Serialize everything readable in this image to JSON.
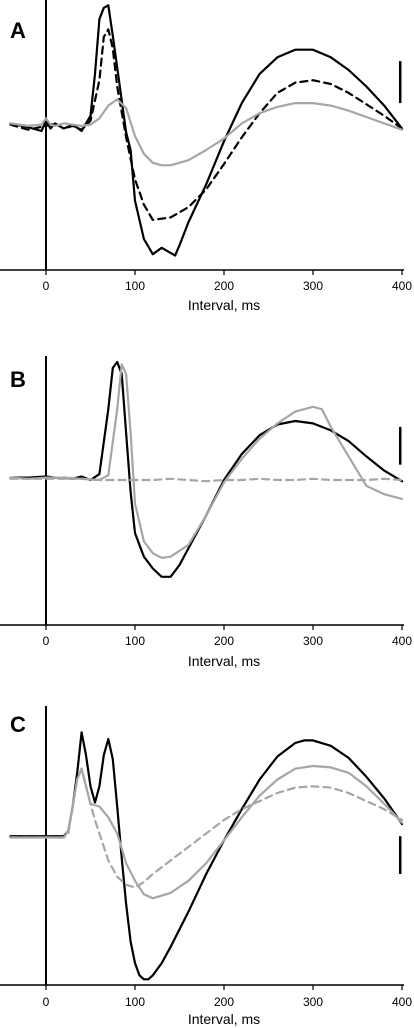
{
  "figure": {
    "panels": [
      "A",
      "B",
      "C"
    ],
    "colors": {
      "black": "#000000",
      "gray": "#a6a6a6"
    }
  },
  "chart_data": [
    {
      "type": "line",
      "panel_label": "A",
      "xlabel": "Interval, ms",
      "ylabel": "",
      "xlim": [
        -40,
        400
      ],
      "ylim": [
        -1.0,
        1.0
      ],
      "x_ticks": [
        0,
        100,
        200,
        300,
        400
      ],
      "tick_labels": [
        "0",
        "100",
        "200",
        "300",
        "400"
      ],
      "grid": false,
      "legend": "none",
      "scale_bar": {
        "x": 398,
        "y0": 0.22,
        "y1": 0.55
      },
      "series": [
        {
          "color": "#000000",
          "dash": "solid",
          "x": [
            -40,
            -20,
            -5,
            0,
            5,
            10,
            20,
            30,
            40,
            50,
            55,
            60,
            65,
            70,
            75,
            80,
            90,
            95,
            100,
            110,
            120,
            130,
            140,
            145,
            150,
            160,
            180,
            200,
            220,
            240,
            260,
            280,
            300,
            320,
            340,
            360,
            380,
            400
          ],
          "y": [
            0.06,
            0.03,
            0.0,
            0.08,
            0.02,
            0.06,
            0.02,
            0.05,
            0.0,
            0.12,
            0.45,
            0.88,
            0.97,
            0.99,
            0.75,
            0.5,
            -0.01,
            -0.15,
            -0.55,
            -0.85,
            -0.97,
            -0.92,
            -0.96,
            -0.98,
            -0.9,
            -0.72,
            -0.42,
            -0.08,
            0.22,
            0.45,
            0.58,
            0.64,
            0.64,
            0.58,
            0.48,
            0.35,
            0.2,
            0.02
          ]
        },
        {
          "color": "#000000",
          "dash": "dashed",
          "x": [
            -40,
            -20,
            0,
            10,
            20,
            30,
            40,
            50,
            60,
            65,
            70,
            75,
            80,
            90,
            100,
            110,
            120,
            140,
            160,
            180,
            200,
            220,
            240,
            260,
            280,
            300,
            320,
            340,
            360,
            380,
            400
          ],
          "y": [
            0.05,
            0.01,
            0.04,
            0.06,
            0.02,
            0.04,
            0.01,
            0.08,
            0.4,
            0.74,
            0.8,
            0.65,
            0.35,
            -0.05,
            -0.38,
            -0.58,
            -0.7,
            -0.68,
            -0.6,
            -0.46,
            -0.26,
            -0.05,
            0.14,
            0.3,
            0.38,
            0.4,
            0.37,
            0.3,
            0.21,
            0.12,
            0.02
          ]
        },
        {
          "color": "#a6a6a6",
          "dash": "solid",
          "x": [
            -40,
            -20,
            -5,
            0,
            5,
            10,
            20,
            40,
            50,
            60,
            70,
            80,
            90,
            100,
            110,
            120,
            130,
            140,
            160,
            180,
            200,
            220,
            240,
            260,
            280,
            300,
            320,
            340,
            360,
            380,
            400
          ],
          "y": [
            0.06,
            0.04,
            0.05,
            0.1,
            0.05,
            0.04,
            0.06,
            0.04,
            0.05,
            0.1,
            0.2,
            0.25,
            0.18,
            -0.04,
            -0.18,
            -0.25,
            -0.27,
            -0.27,
            -0.23,
            -0.15,
            -0.06,
            0.06,
            0.14,
            0.19,
            0.22,
            0.22,
            0.2,
            0.16,
            0.11,
            0.06,
            0.01
          ]
        }
      ]
    },
    {
      "type": "line",
      "panel_label": "B",
      "xlabel": "Interval, ms",
      "ylabel": "",
      "xlim": [
        -40,
        400
      ],
      "ylim": [
        -1.0,
        1.0
      ],
      "x_ticks": [
        0,
        100,
        200,
        300,
        400
      ],
      "tick_labels": [
        "0",
        "100",
        "200",
        "300",
        "400"
      ],
      "grid": false,
      "legend": "none",
      "scale_bar": {
        "x": 398,
        "y0": 0.13,
        "y1": 0.45
      },
      "series": [
        {
          "color": "#000000",
          "dash": "solid",
          "x": [
            -40,
            -20,
            0,
            10,
            20,
            30,
            40,
            50,
            60,
            70,
            75,
            80,
            85,
            90,
            95,
            100,
            110,
            120,
            130,
            140,
            150,
            160,
            180,
            200,
            220,
            240,
            260,
            280,
            300,
            320,
            340,
            360,
            380,
            400
          ],
          "y": [
            0.02,
            0.02,
            0.03,
            0.02,
            0.02,
            0.01,
            0.03,
            0.0,
            0.05,
            0.6,
            0.95,
            1.0,
            0.9,
            0.4,
            -0.1,
            -0.45,
            -0.65,
            -0.75,
            -0.82,
            -0.82,
            -0.72,
            -0.58,
            -0.3,
            0.0,
            0.22,
            0.38,
            0.47,
            0.5,
            0.48,
            0.42,
            0.33,
            0.2,
            0.08,
            -0.01
          ]
        },
        {
          "color": "#a6a6a6",
          "dash": "solid",
          "x": [
            -40,
            -20,
            0,
            20,
            40,
            60,
            70,
            80,
            85,
            90,
            95,
            100,
            110,
            120,
            130,
            140,
            160,
            180,
            200,
            220,
            240,
            260,
            280,
            300,
            310,
            320,
            340,
            360,
            380,
            400
          ],
          "y": [
            0.02,
            0.01,
            0.02,
            0.02,
            0.01,
            0.0,
            0.04,
            0.6,
            0.98,
            0.9,
            0.4,
            -0.2,
            -0.52,
            -0.62,
            -0.66,
            -0.65,
            -0.55,
            -0.3,
            -0.02,
            0.18,
            0.35,
            0.48,
            0.58,
            0.62,
            0.6,
            0.45,
            0.2,
            -0.05,
            -0.12,
            -0.16
          ]
        },
        {
          "color": "#a6a6a6",
          "dash": "dashed",
          "x": [
            -40,
            0,
            40,
            60,
            80,
            100,
            120,
            140,
            160,
            180,
            200,
            220,
            240,
            260,
            280,
            300,
            320,
            340,
            360,
            380,
            400
          ],
          "y": [
            0.01,
            0.01,
            0.01,
            0.0,
            0.0,
            0.0,
            0.0,
            0.01,
            0.0,
            -0.01,
            0.0,
            0.0,
            0.01,
            0.0,
            0.0,
            0.01,
            0.0,
            0.0,
            0.0,
            0.01,
            0.0
          ]
        }
      ]
    },
    {
      "type": "line",
      "panel_label": "C",
      "xlabel": "Interval, ms",
      "ylabel": "",
      "xlim": [
        -40,
        400
      ],
      "ylim": [
        -1.0,
        1.0
      ],
      "x_ticks": [
        0,
        100,
        200,
        300,
        400
      ],
      "tick_labels": [
        "0",
        "100",
        "200",
        "300",
        "400"
      ],
      "grid": false,
      "legend": "none",
      "scale_bar": {
        "x": 398,
        "y0": -0.2,
        "y1": 0.08
      },
      "series": [
        {
          "color": "#000000",
          "dash": "solid",
          "x": [
            -40,
            -20,
            0,
            20,
            25,
            30,
            35,
            40,
            45,
            50,
            55,
            60,
            65,
            70,
            75,
            80,
            85,
            90,
            95,
            100,
            105,
            110,
            115,
            120,
            130,
            140,
            160,
            180,
            200,
            220,
            240,
            260,
            280,
            290,
            300,
            320,
            340,
            360,
            380,
            400
          ],
          "y": [
            0.08,
            0.08,
            0.08,
            0.08,
            0.12,
            0.3,
            0.55,
            0.85,
            0.68,
            0.45,
            0.33,
            0.45,
            0.68,
            0.8,
            0.65,
            0.3,
            -0.08,
            -0.42,
            -0.7,
            -0.86,
            -0.95,
            -0.98,
            -0.98,
            -0.95,
            -0.86,
            -0.74,
            -0.48,
            -0.2,
            0.05,
            0.28,
            0.5,
            0.67,
            0.77,
            0.79,
            0.79,
            0.75,
            0.66,
            0.52,
            0.36,
            0.17
          ]
        },
        {
          "color": "#a6a6a6",
          "dash": "solid",
          "x": [
            -40,
            -20,
            0,
            20,
            25,
            30,
            35,
            40,
            45,
            50,
            60,
            70,
            80,
            90,
            100,
            110,
            120,
            140,
            160,
            180,
            200,
            220,
            240,
            260,
            280,
            300,
            320,
            340,
            360,
            380,
            400
          ],
          "y": [
            0.07,
            0.07,
            0.07,
            0.07,
            0.12,
            0.3,
            0.5,
            0.58,
            0.45,
            0.32,
            0.3,
            0.22,
            0.1,
            -0.12,
            -0.25,
            -0.35,
            -0.38,
            -0.34,
            -0.25,
            -0.12,
            0.05,
            0.22,
            0.38,
            0.5,
            0.58,
            0.6,
            0.59,
            0.55,
            0.45,
            0.32,
            0.18
          ]
        },
        {
          "color": "#a6a6a6",
          "dash": "dashed",
          "x": [
            -40,
            -20,
            0,
            20,
            25,
            30,
            35,
            40,
            45,
            50,
            55,
            60,
            70,
            80,
            90,
            100,
            110,
            120,
            140,
            160,
            180,
            200,
            220,
            240,
            260,
            280,
            300,
            320,
            340,
            360,
            380,
            400
          ],
          "y": [
            0.07,
            0.07,
            0.07,
            0.07,
            0.1,
            0.3,
            0.5,
            0.58,
            0.45,
            0.32,
            0.2,
            0.1,
            -0.1,
            -0.22,
            -0.28,
            -0.3,
            -0.26,
            -0.2,
            -0.1,
            0.0,
            0.1,
            0.2,
            0.28,
            0.34,
            0.4,
            0.44,
            0.45,
            0.44,
            0.4,
            0.34,
            0.28,
            0.2
          ]
        }
      ]
    }
  ]
}
